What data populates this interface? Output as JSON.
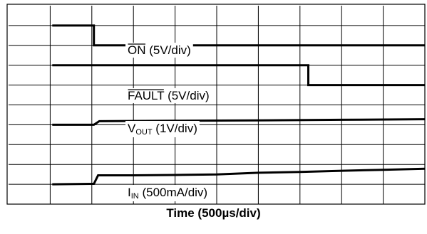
{
  "chart_data": {
    "type": "line",
    "title": "",
    "xlabel": "Time (500µs/div)",
    "ylabel": "",
    "grid": true,
    "x_divisions": 10,
    "y_divisions": 10,
    "x_units": "div",
    "y_units": "div",
    "series": [
      {
        "name_main": "ON",
        "name_rest": " (5V/div)",
        "overline": true,
        "points": [
          [
            1.05,
            9.0
          ],
          [
            2.05,
            9.0
          ],
          [
            2.05,
            8.0
          ],
          [
            10.0,
            8.0
          ]
        ]
      },
      {
        "name_main": "FAULT",
        "name_rest": " (5V/div)",
        "overline": true,
        "points": [
          [
            1.05,
            7.0
          ],
          [
            7.2,
            7.0
          ],
          [
            7.2,
            6.0
          ],
          [
            10.0,
            6.0
          ]
        ]
      },
      {
        "name_main": "V",
        "name_sub": "OUT",
        "name_rest": " (1V/div)",
        "overline": false,
        "points": [
          [
            1.05,
            4.0
          ],
          [
            2.05,
            4.0
          ],
          [
            2.18,
            4.18
          ],
          [
            4.0,
            4.2
          ],
          [
            6.0,
            4.22
          ],
          [
            8.0,
            4.25
          ],
          [
            10.0,
            4.28
          ]
        ]
      },
      {
        "name_main": "I",
        "name_sub": "IN",
        "name_rest": " (500mA/div)",
        "overline": false,
        "points": [
          [
            1.05,
            1.0
          ],
          [
            2.05,
            1.02
          ],
          [
            2.15,
            1.45
          ],
          [
            3.0,
            1.45
          ],
          [
            4.0,
            1.47
          ],
          [
            5.0,
            1.5
          ],
          [
            6.0,
            1.58
          ],
          [
            7.0,
            1.62
          ],
          [
            8.0,
            1.68
          ],
          [
            9.0,
            1.73
          ],
          [
            10.0,
            1.78
          ]
        ]
      }
    ]
  }
}
